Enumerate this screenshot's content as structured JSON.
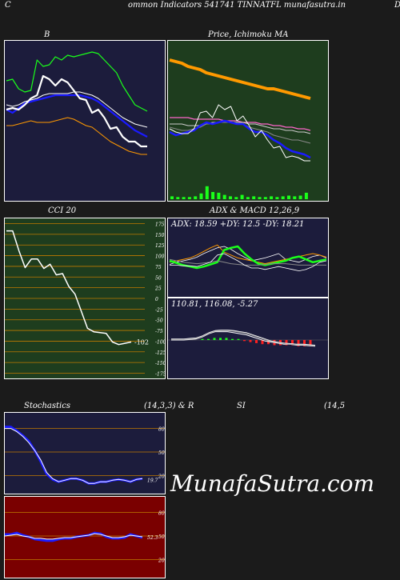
{
  "header": {
    "left_letter": "C",
    "title": "ommon  Indicators 541741 TINNATFL munafasutra.in",
    "right_letter": "D"
  },
  "watermark": "MunafaSutra.com",
  "colors": {
    "panel_navy": "#1c1c3c",
    "panel_green": "#1e3d1e",
    "panel_red": "#7a0000",
    "grid_orange": "#c07a00",
    "line_white": "#ffffff",
    "line_blue": "#1a1aff",
    "line_green": "#1aff1a",
    "line_orange": "#ff9900"
  },
  "chart_data": [
    {
      "id": "bollinger",
      "type": "line",
      "title": "B",
      "series": [
        {
          "values": [
            75,
            76,
            70,
            68,
            69,
            88,
            84,
            85,
            90,
            88,
            91,
            90,
            91,
            92,
            93,
            92,
            88,
            84,
            80,
            72,
            66,
            60,
            58,
            56
          ]
        },
        {
          "values": [
            60,
            59,
            60,
            62,
            63,
            64,
            66,
            67,
            67,
            67,
            67,
            68,
            68,
            67,
            66,
            64,
            61,
            58,
            55,
            52,
            50,
            48,
            47,
            46
          ]
        },
        {
          "values": [
            57,
            55,
            58,
            61,
            62,
            63,
            64,
            65,
            66,
            66,
            66,
            66,
            66,
            65,
            64,
            62,
            59,
            56,
            53,
            50,
            47,
            44,
            42,
            40
          ]
        },
        {
          "values": [
            47,
            47,
            48,
            49,
            50,
            49,
            49,
            49,
            50,
            51,
            52,
            51,
            49,
            47,
            46,
            43,
            40,
            37,
            35,
            33,
            31,
            30,
            29,
            29
          ]
        },
        {
          "values": [
            57,
            58,
            57,
            60,
            64,
            66,
            78,
            76,
            72,
            76,
            74,
            69,
            64,
            63,
            55,
            57,
            52,
            45,
            46,
            40,
            37,
            37,
            34,
            34
          ]
        }
      ]
    },
    {
      "id": "price_ma",
      "type": "line",
      "title": "Price,  Ichimoku  MA",
      "series": [
        {
          "values": [
            88,
            87,
            86,
            84,
            83,
            82,
            80,
            79,
            78,
            77,
            76,
            75,
            74,
            73,
            72,
            71,
            70,
            70,
            69,
            68,
            67,
            66,
            65,
            64
          ]
        },
        {
          "values": [
            52,
            52,
            52,
            52,
            51,
            51,
            51,
            51,
            51,
            50,
            50,
            50,
            49,
            49,
            49,
            48,
            48,
            47,
            47,
            46,
            46,
            45,
            45,
            44
          ]
        },
        {
          "values": [
            48,
            48,
            48,
            47,
            47,
            47,
            48,
            49,
            49,
            49,
            49,
            49,
            49,
            48,
            48,
            47,
            46,
            45,
            45,
            44,
            44,
            43,
            43,
            42
          ]
        },
        {
          "values": [
            46,
            45,
            44,
            44,
            45,
            46,
            48,
            48,
            49,
            49,
            49,
            48,
            48,
            46,
            45,
            44,
            43,
            41,
            40,
            39,
            38,
            38,
            37,
            36
          ]
        },
        {
          "values": [
            43,
            41,
            42,
            43,
            44,
            47,
            49,
            48,
            49,
            50,
            49,
            48,
            48,
            45,
            43,
            43,
            41,
            38,
            36,
            33,
            31,
            30,
            29,
            27
          ]
        },
        {
          "values": [
            45,
            43,
            42,
            42,
            45,
            55,
            56,
            52,
            60,
            57,
            59,
            50,
            53,
            47,
            40,
            44,
            38,
            33,
            34,
            27,
            28,
            27,
            25,
            25
          ]
        }
      ],
      "volume": [
        4,
        3,
        3,
        3,
        4,
        8,
        18,
        10,
        9,
        6,
        4,
        3,
        6,
        3,
        4,
        3,
        3,
        4,
        3,
        4,
        5,
        4,
        5,
        9
      ]
    },
    {
      "id": "cci",
      "type": "line",
      "title": "CCI 20",
      "ylim": [
        -175,
        175
      ],
      "yticks": [
        175,
        150,
        125,
        100,
        75,
        50,
        25,
        0,
        -25,
        -50,
        -75,
        -100,
        -125,
        -150,
        -175
      ],
      "series": [
        {
          "values": [
            158,
            158,
            112,
            72,
            92,
            92,
            70,
            80,
            55,
            58,
            28,
            10,
            -30,
            -70,
            -78,
            -80,
            -82,
            -102,
            -108,
            -105,
            -102
          ]
        }
      ],
      "last_label": "-102"
    },
    {
      "id": "adx",
      "type": "line",
      "title": "ADX  & MACD 12,26,9",
      "readout": "ADX: 18.59 +DY: 12.5 -DY: 18.21",
      "series": [
        {
          "values": [
            45,
            48,
            50,
            52,
            55,
            60,
            64,
            68,
            70,
            66,
            60,
            55,
            50,
            52,
            54,
            57,
            60,
            52,
            50,
            48,
            52,
            56,
            58,
            54
          ]
        },
        {
          "values": [
            48,
            50,
            52,
            54,
            58,
            63,
            68,
            72,
            62,
            58,
            54,
            52,
            50,
            48,
            46,
            48,
            50,
            52,
            54,
            56,
            58,
            60,
            58,
            55
          ]
        },
        {
          "values": [
            50,
            47,
            44,
            42,
            40,
            42,
            45,
            48,
            65,
            68,
            70,
            60,
            52,
            46,
            44,
            46,
            48,
            50,
            54,
            56,
            52,
            48,
            50,
            52
          ]
        },
        {
          "values": [
            52,
            50,
            48,
            47,
            46,
            47,
            48,
            50,
            48,
            46,
            45,
            44,
            44,
            44,
            45,
            46,
            46,
            46,
            45,
            44,
            44,
            44,
            44,
            44
          ]
        },
        {
          "values": [
            44,
            44,
            43,
            43,
            42,
            45,
            48,
            58,
            60,
            55,
            50,
            44,
            40,
            40,
            38,
            40,
            42,
            40,
            38,
            36,
            38,
            42,
            48,
            50
          ]
        }
      ]
    },
    {
      "id": "macd",
      "type": "line",
      "title": "",
      "readout": "110.81,  116.08,  -5.27",
      "series": [
        {
          "values": [
            0,
            0,
            0,
            0.5,
            1,
            3,
            6,
            8,
            8,
            8,
            7,
            6,
            5,
            3,
            1,
            -1,
            -2,
            -3,
            -4,
            -4,
            -5,
            -5,
            -5.5,
            -6
          ]
        },
        {
          "values": [
            1,
            1,
            1,
            1.5,
            2,
            4,
            7,
            9,
            9.5,
            9.5,
            9,
            8,
            7,
            5,
            3,
            1,
            -1,
            -2,
            -3,
            -3.5,
            -4,
            -4,
            -4.5,
            -5
          ]
        },
        {
          "values": [
            0.5,
            0.5,
            0.5,
            1,
            1.5,
            3.5,
            6.5,
            8.5,
            9,
            9,
            8.5,
            7.5,
            6.5,
            4.5,
            2.5,
            0.5,
            -1.5,
            -2.5,
            -3.5,
            -4,
            -4.5,
            -4.5,
            -5,
            -5.5
          ]
        }
      ],
      "histogram": [
        0,
        0,
        0,
        0,
        0,
        1,
        1,
        2,
        2,
        2,
        1,
        1,
        -1,
        -2,
        -3,
        -4,
        -4,
        -5,
        -5,
        -5,
        -5,
        -6,
        -6,
        -6
      ]
    },
    {
      "id": "stochastics",
      "type": "line",
      "title": "Stochastics",
      "params": "(14,3,3) & R",
      "yticks": [
        80,
        50,
        20
      ],
      "series": [
        {
          "values": [
            80,
            80,
            76,
            70,
            62,
            52,
            40,
            24,
            16,
            12,
            14,
            16,
            16,
            14,
            10,
            10,
            12,
            12,
            14,
            15,
            14,
            12,
            15,
            16
          ]
        },
        {
          "values": [
            82,
            82,
            77,
            71,
            64,
            52,
            38,
            22,
            15,
            12,
            14,
            16,
            16,
            14,
            10,
            10,
            12,
            12,
            14,
            15,
            14,
            12,
            15,
            16
          ]
        }
      ],
      "last_label": "19.7"
    },
    {
      "id": "williams_r",
      "type": "line",
      "title": "",
      "yticks": [
        80,
        50,
        20
      ],
      "series": [
        {
          "values": [
            50,
            51,
            52,
            50,
            49,
            47,
            47,
            46,
            46,
            47,
            48,
            48,
            49,
            50,
            51,
            53,
            52,
            50,
            48,
            48,
            49,
            51,
            50,
            49
          ]
        },
        {
          "values": [
            52,
            52,
            54,
            51,
            49,
            46,
            45,
            44,
            44,
            46,
            47,
            47,
            49,
            50,
            51,
            54,
            53,
            49,
            47,
            47,
            48,
            52,
            50,
            48
          ]
        }
      ],
      "last_label": "52.3"
    },
    {
      "id": "rsi",
      "type": "line",
      "title": "SI",
      "params": "(14,5",
      "series": []
    }
  ]
}
